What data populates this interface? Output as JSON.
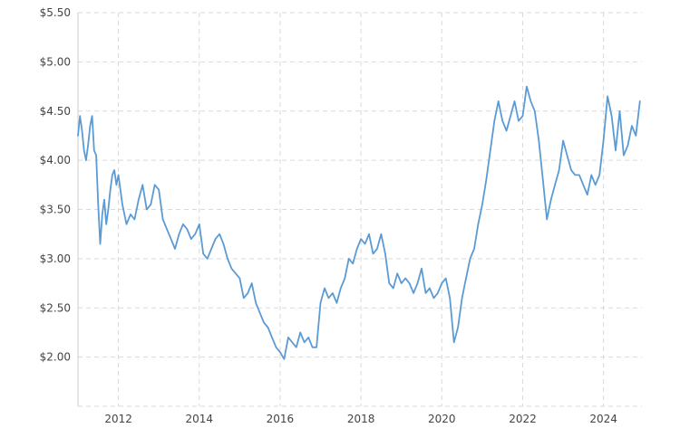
{
  "chart_data": {
    "type": "line",
    "title": "",
    "xlabel": "",
    "ylabel": "",
    "xlim": [
      2011.0,
      2024.95
    ],
    "ylim": [
      1.5,
      5.5
    ],
    "grid": true,
    "legend": "none",
    "x_ticks": [
      2012,
      2014,
      2016,
      2018,
      2020,
      2022,
      2024
    ],
    "x_tick_labels": [
      "2012",
      "2014",
      "2016",
      "2018",
      "2020",
      "2022",
      "2024"
    ],
    "y_ticks": [
      2.0,
      2.5,
      3.0,
      3.5,
      4.0,
      4.5,
      5.0,
      5.5
    ],
    "y_tick_labels": [
      "$2.00",
      "$2.50",
      "$3.00",
      "$3.50",
      "$4.00",
      "$4.50",
      "$5.00",
      "$5.50"
    ],
    "colors": {
      "series": "#5b9bd5",
      "grid": "#d9d9d9",
      "tick_text": "#444444"
    },
    "series": [
      {
        "x": [
          2011.0,
          2011.05,
          2011.1,
          2011.15,
          2011.2,
          2011.25,
          2011.3,
          2011.35,
          2011.4,
          2011.45,
          2011.5,
          2011.55,
          2011.6,
          2011.65,
          2011.7,
          2011.75,
          2011.8,
          2011.85,
          2011.9,
          2011.95,
          2012.0,
          2012.1,
          2012.2,
          2012.3,
          2012.4,
          2012.5,
          2012.6,
          2012.7,
          2012.8,
          2012.9,
          2013.0,
          2013.1,
          2013.2,
          2013.3,
          2013.4,
          2013.5,
          2013.6,
          2013.7,
          2013.8,
          2013.9,
          2014.0,
          2014.1,
          2014.2,
          2014.3,
          2014.4,
          2014.5,
          2014.6,
          2014.7,
          2014.8,
          2014.9,
          2015.0,
          2015.1,
          2015.2,
          2015.3,
          2015.4,
          2015.5,
          2015.6,
          2015.7,
          2015.8,
          2015.9,
          2016.0,
          2016.1,
          2016.2,
          2016.3,
          2016.4,
          2016.5,
          2016.6,
          2016.7,
          2016.8,
          2016.9,
          2017.0,
          2017.1,
          2017.2,
          2017.3,
          2017.4,
          2017.5,
          2017.6,
          2017.7,
          2017.8,
          2017.9,
          2018.0,
          2018.1,
          2018.2,
          2018.3,
          2018.4,
          2018.5,
          2018.6,
          2018.7,
          2018.8,
          2018.9,
          2019.0,
          2019.1,
          2019.2,
          2019.3,
          2019.4,
          2019.5,
          2019.6,
          2019.7,
          2019.8,
          2019.9,
          2020.0,
          2020.1,
          2020.2,
          2020.3,
          2020.4,
          2020.5,
          2020.6,
          2020.7,
          2020.8,
          2020.9,
          2021.0,
          2021.1,
          2021.2,
          2021.3,
          2021.4,
          2021.5,
          2021.6,
          2021.7,
          2021.8,
          2021.9,
          2022.0,
          2022.1,
          2022.2,
          2022.3,
          2022.4,
          2022.5,
          2022.6,
          2022.7,
          2022.8,
          2022.9,
          2023.0,
          2023.1,
          2023.2,
          2023.3,
          2023.4,
          2023.5,
          2023.6,
          2023.7,
          2023.8,
          2023.9,
          2024.0,
          2024.1,
          2024.2,
          2024.3,
          2024.4,
          2024.5,
          2024.6,
          2024.7,
          2024.8,
          2024.9
        ],
        "y": [
          4.25,
          4.45,
          4.3,
          4.1,
          4.0,
          4.15,
          4.35,
          4.45,
          4.1,
          4.05,
          3.55,
          3.15,
          3.45,
          3.6,
          3.35,
          3.5,
          3.7,
          3.85,
          3.9,
          3.75,
          3.85,
          3.55,
          3.35,
          3.45,
          3.4,
          3.6,
          3.75,
          3.5,
          3.55,
          3.75,
          3.7,
          3.4,
          3.3,
          3.2,
          3.1,
          3.25,
          3.35,
          3.3,
          3.2,
          3.25,
          3.35,
          3.05,
          3.0,
          3.1,
          3.2,
          3.25,
          3.15,
          3.0,
          2.9,
          2.85,
          2.8,
          2.6,
          2.65,
          2.75,
          2.55,
          2.45,
          2.35,
          2.3,
          2.2,
          2.1,
          2.05,
          1.98,
          2.2,
          2.15,
          2.1,
          2.25,
          2.15,
          2.2,
          2.1,
          2.1,
          2.55,
          2.7,
          2.6,
          2.65,
          2.55,
          2.7,
          2.8,
          3.0,
          2.95,
          3.1,
          3.2,
          3.15,
          3.25,
          3.05,
          3.1,
          3.25,
          3.05,
          2.75,
          2.7,
          2.85,
          2.75,
          2.8,
          2.75,
          2.65,
          2.75,
          2.9,
          2.65,
          2.7,
          2.6,
          2.65,
          2.75,
          2.8,
          2.6,
          2.15,
          2.3,
          2.6,
          2.8,
          3.0,
          3.1,
          3.35,
          3.55,
          3.8,
          4.1,
          4.4,
          4.6,
          4.4,
          4.3,
          4.45,
          4.6,
          4.4,
          4.45,
          4.75,
          4.6,
          4.5,
          4.2,
          3.8,
          3.4,
          3.6,
          3.75,
          3.9,
          4.2,
          4.05,
          3.9,
          3.85,
          3.85,
          3.75,
          3.65,
          3.85,
          3.75,
          3.85,
          4.2,
          4.65,
          4.45,
          4.1,
          4.5,
          4.05,
          4.15,
          4.35,
          4.25,
          4.6
        ]
      }
    ]
  }
}
